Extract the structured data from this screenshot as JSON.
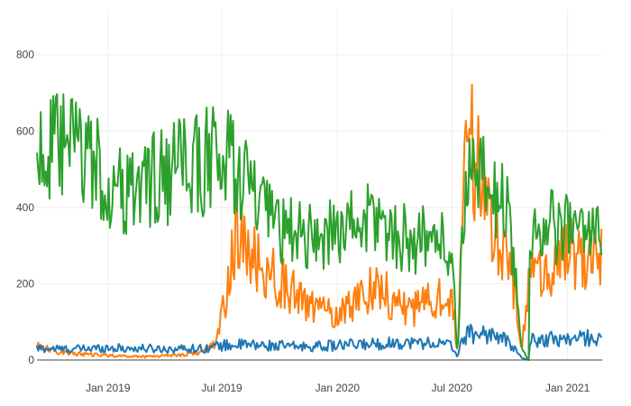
{
  "chart_data": {
    "type": "line",
    "title": "",
    "xlabel": "",
    "ylabel": "",
    "x_range": [
      "2018-09-10",
      "2021-02-25"
    ],
    "y_range": [
      0,
      920
    ],
    "x_ticks": [
      {
        "date": "2019-01-01",
        "label": "Jan 2019"
      },
      {
        "date": "2019-07-01",
        "label": "Jul 2019"
      },
      {
        "date": "2020-01-01",
        "label": "Jan 2020"
      },
      {
        "date": "2020-07-01",
        "label": "Jul 2020"
      },
      {
        "date": "2021-01-01",
        "label": "Jan 2021"
      }
    ],
    "y_ticks": [
      0,
      200,
      400,
      600,
      800
    ],
    "grid": true,
    "legend": "none",
    "series": [
      {
        "color": "#1f77b4",
        "points": [
          [
            "2018-09-10",
            30
          ],
          [
            "2018-10-01",
            30
          ],
          [
            "2018-11-01",
            28
          ],
          [
            "2018-12-01",
            30
          ],
          [
            "2019-01-01",
            32
          ],
          [
            "2019-02-01",
            30
          ],
          [
            "2019-03-01",
            30
          ],
          [
            "2019-04-01",
            29
          ],
          [
            "2019-05-01",
            30
          ],
          [
            "2019-06-01",
            30
          ],
          [
            "2019-07-01",
            38
          ],
          [
            "2019-08-01",
            40
          ],
          [
            "2019-09-01",
            38
          ],
          [
            "2019-10-01",
            37
          ],
          [
            "2019-11-01",
            35
          ],
          [
            "2019-12-01",
            36
          ],
          [
            "2020-01-01",
            38
          ],
          [
            "2020-02-01",
            40
          ],
          [
            "2020-03-01",
            42
          ],
          [
            "2020-04-01",
            45
          ],
          [
            "2020-05-01",
            45
          ],
          [
            "2020-06-01",
            45
          ],
          [
            "2020-07-01",
            38
          ],
          [
            "2020-07-10",
            10
          ],
          [
            "2020-07-20",
            62
          ],
          [
            "2020-08-01",
            70
          ],
          [
            "2020-09-01",
            68
          ],
          [
            "2020-10-01",
            45
          ],
          [
            "2020-10-20",
            5
          ],
          [
            "2020-10-31",
            0
          ],
          [
            "2020-11-01",
            50
          ],
          [
            "2020-12-01",
            55
          ],
          [
            "2021-01-01",
            55
          ],
          [
            "2021-02-25",
            60
          ]
        ]
      },
      {
        "color": "#ff7f0e",
        "points": [
          [
            "2018-09-10",
            40
          ],
          [
            "2018-10-01",
            25
          ],
          [
            "2018-11-01",
            18
          ],
          [
            "2018-12-01",
            14
          ],
          [
            "2019-01-01",
            12
          ],
          [
            "2019-02-01",
            10
          ],
          [
            "2019-03-01",
            9
          ],
          [
            "2019-04-01",
            12
          ],
          [
            "2019-05-01",
            14
          ],
          [
            "2019-06-01",
            22
          ],
          [
            "2019-06-20",
            40
          ],
          [
            "2019-07-01",
            110
          ],
          [
            "2019-07-15",
            250
          ],
          [
            "2019-07-25",
            330
          ],
          [
            "2019-08-01",
            300
          ],
          [
            "2019-09-01",
            240
          ],
          [
            "2019-10-01",
            210
          ],
          [
            "2019-11-01",
            160
          ],
          [
            "2019-12-01",
            130
          ],
          [
            "2020-01-01",
            120
          ],
          [
            "2020-02-01",
            160
          ],
          [
            "2020-03-01",
            200
          ],
          [
            "2020-04-01",
            150
          ],
          [
            "2020-05-01",
            130
          ],
          [
            "2020-06-01",
            160
          ],
          [
            "2020-07-01",
            170
          ],
          [
            "2020-07-10",
            5
          ],
          [
            "2020-07-20",
            450
          ],
          [
            "2020-08-01",
            580
          ],
          [
            "2020-08-15",
            470
          ],
          [
            "2020-09-01",
            380
          ],
          [
            "2020-10-01",
            280
          ],
          [
            "2020-10-20",
            20
          ],
          [
            "2020-11-01",
            210
          ],
          [
            "2020-12-01",
            240
          ],
          [
            "2021-01-01",
            280
          ],
          [
            "2021-02-01",
            260
          ],
          [
            "2021-02-25",
            300
          ]
        ]
      },
      {
        "color": "#2ca02c",
        "points": [
          [
            "2018-09-10",
            560
          ],
          [
            "2018-10-01",
            540
          ],
          [
            "2018-11-01",
            560
          ],
          [
            "2018-12-01",
            540
          ],
          [
            "2019-01-01",
            450
          ],
          [
            "2019-02-01",
            430
          ],
          [
            "2019-03-01",
            470
          ],
          [
            "2019-04-01",
            480
          ],
          [
            "2019-05-01",
            500
          ],
          [
            "2019-06-01",
            520
          ],
          [
            "2019-07-01",
            530
          ],
          [
            "2019-08-01",
            500
          ],
          [
            "2019-09-01",
            390
          ],
          [
            "2019-10-01",
            340
          ],
          [
            "2019-11-01",
            330
          ],
          [
            "2019-12-01",
            320
          ],
          [
            "2020-01-01",
            340
          ],
          [
            "2020-02-01",
            360
          ],
          [
            "2020-03-01",
            370
          ],
          [
            "2020-04-01",
            330
          ],
          [
            "2020-05-01",
            310
          ],
          [
            "2020-06-01",
            330
          ],
          [
            "2020-07-01",
            280
          ],
          [
            "2020-07-10",
            5
          ],
          [
            "2020-07-20",
            450
          ],
          [
            "2020-08-01",
            470
          ],
          [
            "2020-09-01",
            450
          ],
          [
            "2020-10-01",
            380
          ],
          [
            "2020-10-20",
            30
          ],
          [
            "2020-10-31",
            0
          ],
          [
            "2020-11-01",
            330
          ],
          [
            "2020-12-01",
            350
          ],
          [
            "2021-01-01",
            340
          ],
          [
            "2021-02-01",
            330
          ],
          [
            "2021-02-25",
            380
          ]
        ]
      }
    ]
  }
}
